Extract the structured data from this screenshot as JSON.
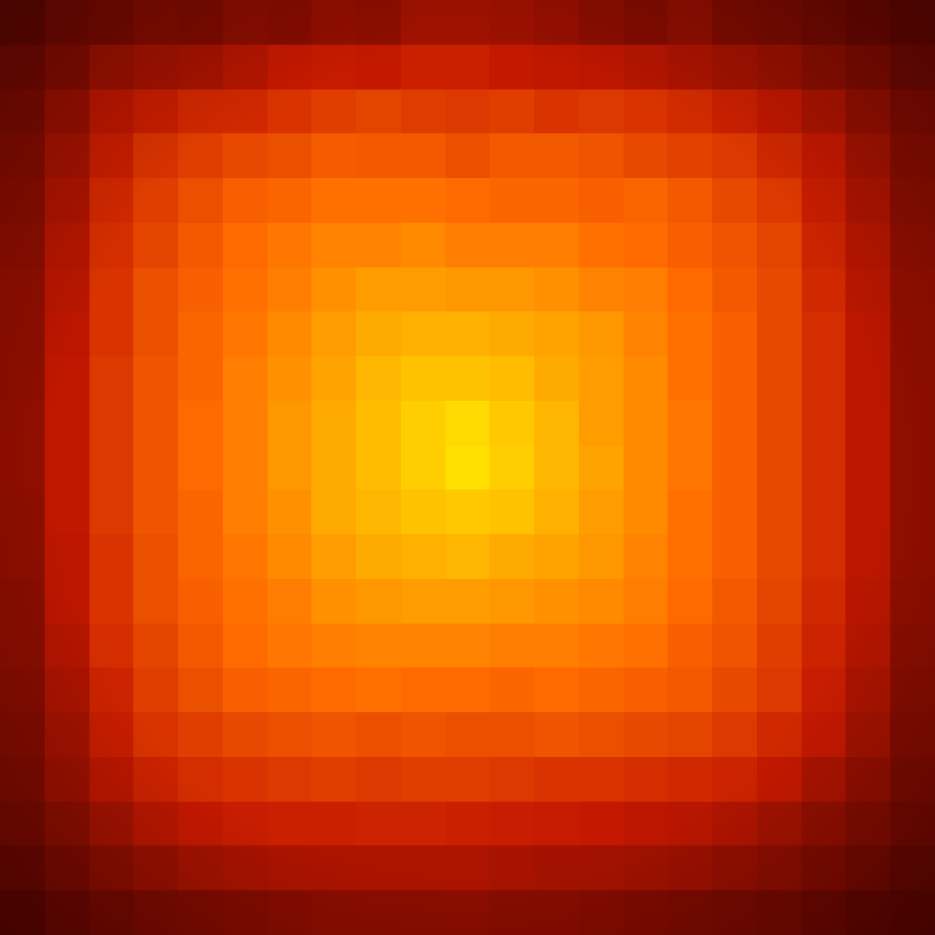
{
  "chart_data": {
    "type": "heatmap",
    "title": "",
    "xlabel": "",
    "ylabel": "",
    "grid": false,
    "legend": "none",
    "colormap": "hot",
    "value_range": [
      0,
      1
    ],
    "colors": {
      "low": "#4a0000",
      "mid_low": "#c41800",
      "mid": "#ff6a00",
      "mid_high": "#ffb000",
      "high": "#ffe600"
    },
    "rows": 21,
    "cols": 21,
    "values": [
      [
        0.06,
        0.1,
        0.11,
        0.14,
        0.13,
        0.16,
        0.15,
        0.18,
        0.17,
        0.22,
        0.22,
        0.21,
        0.19,
        0.16,
        0.14,
        0.17,
        0.13,
        0.12,
        0.1,
        0.08,
        0.06
      ],
      [
        0.1,
        0.14,
        0.2,
        0.22,
        0.23,
        0.26,
        0.3,
        0.31,
        0.3,
        0.33,
        0.33,
        0.3,
        0.29,
        0.28,
        0.26,
        0.24,
        0.22,
        0.2,
        0.16,
        0.13,
        0.09
      ],
      [
        0.12,
        0.19,
        0.28,
        0.32,
        0.36,
        0.36,
        0.4,
        0.44,
        0.46,
        0.43,
        0.42,
        0.44,
        0.4,
        0.42,
        0.4,
        0.37,
        0.33,
        0.29,
        0.24,
        0.18,
        0.13
      ],
      [
        0.14,
        0.22,
        0.32,
        0.4,
        0.44,
        0.48,
        0.5,
        0.55,
        0.54,
        0.54,
        0.5,
        0.54,
        0.54,
        0.52,
        0.48,
        0.45,
        0.42,
        0.36,
        0.3,
        0.22,
        0.15
      ],
      [
        0.15,
        0.24,
        0.36,
        0.44,
        0.5,
        0.56,
        0.58,
        0.62,
        0.62,
        0.62,
        0.6,
        0.58,
        0.58,
        0.56,
        0.58,
        0.54,
        0.48,
        0.42,
        0.32,
        0.24,
        0.16
      ],
      [
        0.16,
        0.26,
        0.38,
        0.46,
        0.54,
        0.6,
        0.64,
        0.68,
        0.68,
        0.7,
        0.66,
        0.66,
        0.66,
        0.62,
        0.6,
        0.56,
        0.52,
        0.46,
        0.34,
        0.26,
        0.17
      ],
      [
        0.17,
        0.27,
        0.4,
        0.5,
        0.56,
        0.62,
        0.66,
        0.72,
        0.76,
        0.76,
        0.74,
        0.74,
        0.72,
        0.68,
        0.66,
        0.6,
        0.54,
        0.48,
        0.36,
        0.27,
        0.18
      ],
      [
        0.17,
        0.28,
        0.4,
        0.5,
        0.58,
        0.64,
        0.7,
        0.76,
        0.8,
        0.82,
        0.82,
        0.8,
        0.78,
        0.74,
        0.68,
        0.62,
        0.56,
        0.48,
        0.38,
        0.28,
        0.18
      ],
      [
        0.17,
        0.29,
        0.42,
        0.52,
        0.58,
        0.66,
        0.72,
        0.78,
        0.84,
        0.88,
        0.88,
        0.86,
        0.8,
        0.76,
        0.7,
        0.62,
        0.56,
        0.48,
        0.38,
        0.28,
        0.18
      ],
      [
        0.18,
        0.29,
        0.42,
        0.52,
        0.6,
        0.66,
        0.74,
        0.8,
        0.86,
        0.92,
        0.96,
        0.9,
        0.84,
        0.76,
        0.7,
        0.64,
        0.56,
        0.48,
        0.38,
        0.28,
        0.18
      ],
      [
        0.18,
        0.29,
        0.42,
        0.52,
        0.6,
        0.66,
        0.74,
        0.8,
        0.86,
        0.92,
        0.98,
        0.92,
        0.84,
        0.78,
        0.7,
        0.64,
        0.56,
        0.48,
        0.38,
        0.28,
        0.18
      ],
      [
        0.17,
        0.29,
        0.42,
        0.52,
        0.58,
        0.66,
        0.72,
        0.8,
        0.84,
        0.88,
        0.9,
        0.88,
        0.82,
        0.76,
        0.7,
        0.62,
        0.56,
        0.48,
        0.38,
        0.28,
        0.18
      ],
      [
        0.17,
        0.28,
        0.4,
        0.5,
        0.58,
        0.64,
        0.7,
        0.76,
        0.8,
        0.82,
        0.84,
        0.8,
        0.78,
        0.74,
        0.68,
        0.62,
        0.56,
        0.48,
        0.38,
        0.28,
        0.18
      ],
      [
        0.16,
        0.28,
        0.4,
        0.5,
        0.56,
        0.62,
        0.66,
        0.72,
        0.74,
        0.76,
        0.76,
        0.74,
        0.72,
        0.7,
        0.66,
        0.6,
        0.54,
        0.46,
        0.36,
        0.27,
        0.17
      ],
      [
        0.16,
        0.26,
        0.38,
        0.46,
        0.54,
        0.6,
        0.64,
        0.66,
        0.68,
        0.68,
        0.68,
        0.66,
        0.66,
        0.64,
        0.62,
        0.56,
        0.52,
        0.44,
        0.34,
        0.26,
        0.16
      ],
      [
        0.15,
        0.24,
        0.34,
        0.44,
        0.5,
        0.56,
        0.58,
        0.6,
        0.62,
        0.6,
        0.6,
        0.58,
        0.6,
        0.58,
        0.56,
        0.54,
        0.48,
        0.42,
        0.32,
        0.24,
        0.15
      ],
      [
        0.14,
        0.22,
        0.32,
        0.4,
        0.44,
        0.48,
        0.5,
        0.52,
        0.5,
        0.52,
        0.5,
        0.5,
        0.52,
        0.5,
        0.48,
        0.46,
        0.42,
        0.36,
        0.3,
        0.22,
        0.14
      ],
      [
        0.13,
        0.2,
        0.28,
        0.34,
        0.38,
        0.4,
        0.42,
        0.44,
        0.42,
        0.44,
        0.44,
        0.42,
        0.4,
        0.4,
        0.38,
        0.36,
        0.34,
        0.3,
        0.24,
        0.18,
        0.12
      ],
      [
        0.11,
        0.16,
        0.22,
        0.27,
        0.3,
        0.32,
        0.33,
        0.33,
        0.34,
        0.34,
        0.33,
        0.32,
        0.31,
        0.3,
        0.28,
        0.27,
        0.25,
        0.22,
        0.18,
        0.14,
        0.1
      ],
      [
        0.08,
        0.12,
        0.16,
        0.19,
        0.22,
        0.23,
        0.24,
        0.24,
        0.24,
        0.24,
        0.24,
        0.23,
        0.22,
        0.22,
        0.21,
        0.2,
        0.18,
        0.16,
        0.13,
        0.1,
        0.07
      ],
      [
        0.05,
        0.08,
        0.1,
        0.12,
        0.13,
        0.14,
        0.15,
        0.16,
        0.16,
        0.16,
        0.16,
        0.15,
        0.15,
        0.14,
        0.13,
        0.12,
        0.11,
        0.1,
        0.08,
        0.06,
        0.05
      ]
    ]
  }
}
